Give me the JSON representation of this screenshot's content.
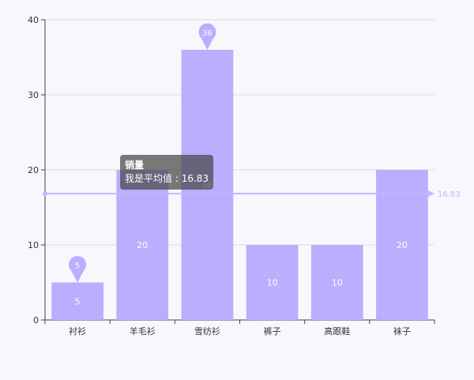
{
  "chart_data": {
    "type": "bar",
    "title": "",
    "xlabel": "",
    "ylabel": "",
    "categories": [
      "衬衫",
      "羊毛衫",
      "雪纺衫",
      "裤子",
      "高跟鞋",
      "袜子"
    ],
    "series": [
      {
        "name": "销量",
        "values": [
          5,
          20,
          36,
          10,
          10,
          20
        ]
      }
    ],
    "ylim": [
      0,
      40
    ],
    "yticks": [
      0,
      10,
      20,
      30,
      40
    ],
    "grid": true,
    "mark_points": [
      {
        "category": "衬衫",
        "value": 5,
        "label": "5"
      },
      {
        "category": "雪纺衫",
        "value": 36,
        "label": "36"
      }
    ],
    "mark_line": {
      "value": 16.83,
      "label": "16.83"
    },
    "colors": {
      "bar": "#bcadfe",
      "bar_label": "#ffffff",
      "markline": "#c3b6ff",
      "axis": "#444444",
      "grid": "#dddddd"
    }
  },
  "tooltip": {
    "title": "销量",
    "label": "我是平均值",
    "separator": " : ",
    "value": "16.83"
  }
}
